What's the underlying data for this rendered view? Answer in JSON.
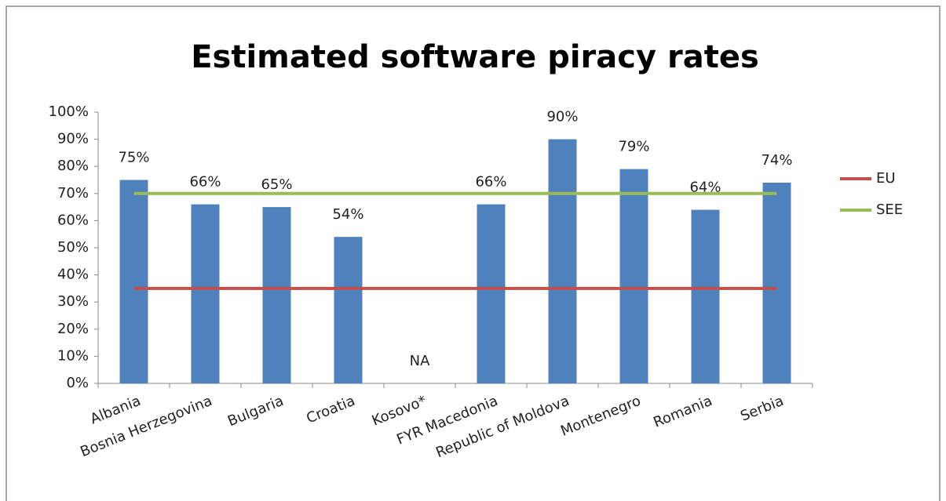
{
  "chart_data": {
    "type": "bar",
    "title": "Estimated software piracy rates",
    "categories": [
      "Albania",
      "Bosnia Herzegovina",
      "Bulgaria",
      "Croatia",
      "Kosovo*",
      "FYR Macedonia",
      "Republic of Moldova",
      "Montenegro",
      "Romania",
      "Serbia"
    ],
    "values": [
      75,
      66,
      65,
      54,
      null,
      66,
      90,
      79,
      64,
      74
    ],
    "value_labels": [
      "75%",
      "66%",
      "65%",
      "54%",
      "NA",
      "66%",
      "90%",
      "79%",
      "64%",
      "74%"
    ],
    "color": "#4f81bd",
    "lines": [
      {
        "name": "EU",
        "color": "#c0504d",
        "values": 35
      },
      {
        "name": "SEE",
        "color": "#9bbb59",
        "values": 70
      }
    ],
    "ylim": [
      0,
      100
    ],
    "yticks": [
      {
        "value": 0,
        "label": "0%"
      },
      {
        "value": 10,
        "label": "10%"
      },
      {
        "value": 20,
        "label": "20%"
      },
      {
        "value": 30,
        "label": "30%"
      },
      {
        "value": 40,
        "label": "40%"
      },
      {
        "value": 50,
        "label": "50%"
      },
      {
        "value": 60,
        "label": "60%"
      },
      {
        "value": 70,
        "label": "70%"
      },
      {
        "value": 80,
        "label": "80%"
      },
      {
        "value": 90,
        "label": "90%"
      },
      {
        "value": 100,
        "label": "100%"
      }
    ],
    "legend": "right"
  }
}
